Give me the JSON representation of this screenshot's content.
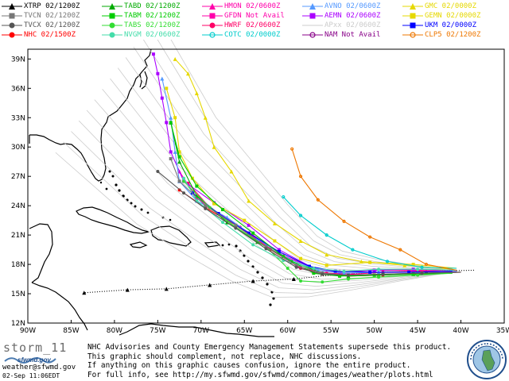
{
  "legend": [
    {
      "label": "XTRP 02/1200Z",
      "color": "#000000",
      "marker": "triangle"
    },
    {
      "label": "TABD 02/1200Z",
      "color": "#00aa00",
      "marker": "triangle"
    },
    {
      "label": "HMON 02/0600Z",
      "color": "#ff00aa",
      "marker": "triangle"
    },
    {
      "label": "AVNO 02/0600Z",
      "color": "#5599ff",
      "marker": "triangle"
    },
    {
      "label": "GMC 02/0000Z",
      "color": "#e6d800",
      "marker": "triangle"
    },
    {
      "label": "TVCN 02/1200Z",
      "color": "#777777",
      "marker": "square"
    },
    {
      "label": "TABM 02/1200Z",
      "color": "#00cc00",
      "marker": "square"
    },
    {
      "label": "GFDN Not Avail",
      "color": "#ff00aa",
      "marker": "square"
    },
    {
      "label": "AEMN 02/0600Z",
      "color": "#aa00ff",
      "marker": "square"
    },
    {
      "label": "GEMN 02/0000Z",
      "color": "#e6d800",
      "marker": "square"
    },
    {
      "label": "TVCX 02/1200Z",
      "color": "#555555",
      "marker": "circle"
    },
    {
      "label": "TABS 02/1200Z",
      "color": "#33dd33",
      "marker": "circle"
    },
    {
      "label": "HWRF 02/0600Z",
      "color": "#ff0066",
      "marker": "circle"
    },
    {
      "label": "APxx 02/0600Z",
      "color": "#cccccc",
      "marker": "none"
    },
    {
      "label": "UKM 02/0000Z",
      "color": "#0000ff",
      "marker": "square"
    },
    {
      "label": "NHC 02/1500Z",
      "color": "#ff0000",
      "marker": "circle"
    },
    {
      "label": "NVGM 02/0600Z",
      "color": "#44ddaa",
      "marker": "circle"
    },
    {
      "label": "COTC 02/0000Z",
      "color": "#00cccc",
      "marker": "ring"
    },
    {
      "label": "NAM Not Avail",
      "color": "#880088",
      "marker": "ring"
    },
    {
      "label": "CLP5 02/1200Z",
      "color": "#ee7700",
      "marker": "ring"
    }
  ],
  "map": {
    "lon_range": [
      -90,
      -35
    ],
    "lat_range": [
      12,
      40
    ],
    "x_ticks": [
      "90W",
      "85W",
      "80W",
      "75W",
      "70W",
      "65W",
      "60W",
      "55W",
      "50W",
      "45W",
      "40W",
      "35W"
    ],
    "y_ticks": [
      "39N",
      "36N",
      "33N",
      "30N",
      "27N",
      "24N",
      "21N",
      "18N",
      "15N",
      "12N"
    ],
    "background": "#ffffff",
    "land_outline": "#000000",
    "grid": false
  },
  "tracks": [
    {
      "model": "XTRP",
      "color": "#000000",
      "dotted": true,
      "points": [
        [
          -38.5,
          17.4
        ],
        [
          -44,
          17.3
        ],
        [
          -49,
          17.2
        ],
        [
          -54,
          17
        ],
        [
          -59.3,
          16.5
        ],
        [
          -64,
          16.3
        ],
        [
          -69,
          15.9
        ],
        [
          -74,
          15.5
        ],
        [
          -78.5,
          15.4
        ],
        [
          -83.5,
          15.1
        ]
      ]
    },
    {
      "model": "NHC",
      "color": "#ff0000",
      "points": [
        [
          -40,
          17.2
        ],
        [
          -44.5,
          17.1
        ],
        [
          -49,
          16.9
        ],
        [
          -53,
          16.8
        ],
        [
          -56,
          17
        ],
        [
          -58.5,
          17.6
        ],
        [
          -62,
          19.5
        ],
        [
          -66,
          22
        ],
        [
          -69.5,
          23.8
        ],
        [
          -72.5,
          25.6
        ]
      ]
    },
    {
      "model": "HWRF",
      "color": "#ff0066",
      "points": [
        [
          -40.5,
          17.3
        ],
        [
          -45,
          17.3
        ],
        [
          -49,
          17.2
        ],
        [
          -52.5,
          17
        ],
        [
          -55.5,
          17.1
        ],
        [
          -58.5,
          17.6
        ],
        [
          -62,
          19.6
        ],
        [
          -65.5,
          21.8
        ],
        [
          -69,
          23.8
        ],
        [
          -71.5,
          26.3
        ]
      ]
    },
    {
      "model": "HMON",
      "color": "#ff00aa",
      "points": [
        [
          -40.5,
          17.3
        ],
        [
          -45.5,
          17.4
        ],
        [
          -50,
          17.4
        ],
        [
          -54,
          17.3
        ],
        [
          -57,
          17.6
        ],
        [
          -60.5,
          18.9
        ],
        [
          -64,
          21
        ],
        [
          -67.5,
          22.9
        ],
        [
          -70.5,
          24.8
        ],
        [
          -72.5,
          27.5
        ]
      ]
    },
    {
      "model": "AEMN",
      "color": "#aa00ff",
      "points": [
        [
          -40.5,
          17.4
        ],
        [
          -45.5,
          17.5
        ],
        [
          -50,
          17.4
        ],
        [
          -54,
          17.2
        ],
        [
          -57,
          17.6
        ],
        [
          -61,
          19.5
        ],
        [
          -64.5,
          22
        ],
        [
          -68.5,
          24.3
        ],
        [
          -72,
          26.5
        ],
        [
          -73.5,
          29.5
        ],
        [
          -74,
          32.5
        ],
        [
          -74.5,
          35
        ],
        [
          -75,
          37.5
        ],
        [
          -75.5,
          39.5
        ]
      ]
    },
    {
      "model": "AVNO",
      "color": "#5599ff",
      "points": [
        [
          -40.5,
          17.3
        ],
        [
          -45,
          17.2
        ],
        [
          -49.5,
          17.2
        ],
        [
          -53.5,
          17.1
        ],
        [
          -56.5,
          17.4
        ],
        [
          -60,
          18.6
        ],
        [
          -63.5,
          20.6
        ],
        [
          -67,
          22.8
        ],
        [
          -70.5,
          24.5
        ],
        [
          -72.5,
          26.5
        ],
        [
          -73,
          29.5
        ],
        [
          -73.5,
          33
        ],
        [
          -74.5,
          37
        ]
      ]
    },
    {
      "model": "UKM",
      "color": "#0000ff",
      "points": [
        [
          -41,
          17.3
        ],
        [
          -46,
          17.2
        ],
        [
          -50.5,
          17.2
        ],
        [
          -54.5,
          17.3
        ],
        [
          -57.5,
          17.8
        ],
        [
          -61,
          19.3
        ],
        [
          -64.5,
          21.2
        ],
        [
          -68,
          23.2
        ],
        [
          -71,
          25.3
        ]
      ]
    },
    {
      "model": "GEMN",
      "color": "#e6d800",
      "points": [
        [
          -40.5,
          17.6
        ],
        [
          -45.5,
          18
        ],
        [
          -50.5,
          18.2
        ],
        [
          -55.5,
          17.9
        ],
        [
          -58.5,
          18.6
        ],
        [
          -61.5,
          20.4
        ],
        [
          -65,
          22.5
        ],
        [
          -68.5,
          24.2
        ],
        [
          -71,
          26.8
        ],
        [
          -72.5,
          29.5
        ],
        [
          -73,
          33
        ],
        [
          -74,
          36
        ]
      ]
    },
    {
      "model": "GMC",
      "color": "#e6d800",
      "points": [
        [
          -41,
          17.5
        ],
        [
          -46.5,
          17.9
        ],
        [
          -51.5,
          18.3
        ],
        [
          -55.5,
          19
        ],
        [
          -58.5,
          20.4
        ],
        [
          -61.5,
          22.2
        ],
        [
          -64.5,
          24.5
        ],
        [
          -66.5,
          27.5
        ],
        [
          -68.5,
          30
        ],
        [
          -69.5,
          33
        ],
        [
          -70.5,
          35.5
        ],
        [
          -71.5,
          37.5
        ],
        [
          -73,
          39
        ]
      ]
    },
    {
      "model": "TABD",
      "color": "#00aa00",
      "points": [
        [
          -41,
          17.1
        ],
        [
          -45.5,
          17
        ],
        [
          -49.5,
          16.9
        ],
        [
          -53,
          16.8
        ],
        [
          -56,
          17.1
        ],
        [
          -59.5,
          18.3
        ],
        [
          -63.5,
          20.3
        ],
        [
          -67,
          22.3
        ],
        [
          -70.5,
          25
        ],
        [
          -72.5,
          28.5
        ],
        [
          -73.5,
          32.5
        ]
      ]
    },
    {
      "model": "TABM",
      "color": "#00cc00",
      "points": [
        [
          -41,
          17.1
        ],
        [
          -45.5,
          17
        ],
        [
          -50,
          16.9
        ],
        [
          -54,
          16.8
        ],
        [
          -57,
          17.1
        ],
        [
          -60.5,
          18.8
        ],
        [
          -64,
          21.2
        ],
        [
          -67.5,
          23.6
        ],
        [
          -70.5,
          26
        ],
        [
          -72.5,
          29
        ],
        [
          -73.5,
          32.5
        ]
      ]
    },
    {
      "model": "TABS",
      "color": "#33dd33",
      "points": [
        [
          -41,
          17.1
        ],
        [
          -45,
          16.9
        ],
        [
          -49.5,
          16.7
        ],
        [
          -53,
          16.5
        ],
        [
          -56,
          16.2
        ],
        [
          -58.5,
          16.3
        ],
        [
          -60,
          17.6
        ],
        [
          -62.5,
          19.8
        ],
        [
          -66,
          21.8
        ],
        [
          -69,
          23.8
        ],
        [
          -72,
          26.5
        ]
      ]
    },
    {
      "model": "NVGM",
      "color": "#44ddaa",
      "points": [
        [
          -40.5,
          17.4
        ],
        [
          -45,
          17.5
        ],
        [
          -49.5,
          17.5
        ],
        [
          -53.5,
          17.3
        ],
        [
          -57,
          17.6
        ],
        [
          -60.5,
          18.4
        ],
        [
          -64,
          20
        ],
        [
          -67.5,
          22.3
        ],
        [
          -70.5,
          24.5
        ],
        [
          -72,
          26.8
        ]
      ]
    },
    {
      "model": "TVCN",
      "color": "#777777",
      "points": [
        [
          -40,
          17.2
        ],
        [
          -44.5,
          17.1
        ],
        [
          -49,
          17
        ],
        [
          -53,
          16.9
        ],
        [
          -56,
          17.1
        ],
        [
          -59,
          17.9
        ],
        [
          -62.5,
          19.8
        ],
        [
          -66,
          22
        ],
        [
          -69.5,
          24
        ],
        [
          -72.5,
          26.5
        ],
        [
          -73.5,
          28.8
        ]
      ]
    },
    {
      "model": "TVCX",
      "color": "#555555",
      "points": [
        [
          -40,
          17.2
        ],
        [
          -44.5,
          17.1
        ],
        [
          -49,
          17
        ],
        [
          -53,
          16.9
        ],
        [
          -56,
          17
        ],
        [
          -59,
          17.7
        ],
        [
          -62.5,
          19.6
        ],
        [
          -66,
          21.7
        ],
        [
          -69.5,
          23.7
        ],
        [
          -72,
          25.3
        ],
        [
          -75,
          27.5
        ]
      ]
    },
    {
      "model": "COTC",
      "color": "#00cccc",
      "points": [
        [
          -40.5,
          17.6
        ],
        [
          -44.5,
          17.7
        ],
        [
          -48.5,
          18.3
        ],
        [
          -52.5,
          19.5
        ],
        [
          -55.5,
          21
        ],
        [
          -58.5,
          23
        ],
        [
          -60.5,
          24.9
        ]
      ]
    },
    {
      "model": "CLP5",
      "color": "#ee7700",
      "points": [
        [
          -40.5,
          17.4
        ],
        [
          -44,
          18
        ],
        [
          -47,
          19.5
        ],
        [
          -50.5,
          20.8
        ],
        [
          -53.5,
          22.4
        ],
        [
          -56.5,
          24.6
        ],
        [
          -58.5,
          27
        ],
        [
          -59.5,
          29.8
        ]
      ]
    },
    {
      "model": "APxx",
      "color": "#cccccc",
      "ensemble": true,
      "points": [
        [
          -40.5,
          17.3
        ],
        [
          -46,
          17.2
        ],
        [
          -51,
          17.1
        ],
        [
          -55.5,
          17.2
        ],
        [
          -59,
          18
        ],
        [
          -63,
          20.5
        ],
        [
          -67.5,
          24
        ],
        [
          -72.5,
          28
        ],
        [
          -76.5,
          32.5
        ],
        [
          -80.5,
          37
        ]
      ]
    }
  ],
  "footer": {
    "storm_name": "storm_11",
    "logo_text": "sfwmd.gov",
    "contact": "weather@sfwmd.gov",
    "timestamp": "02-Sep 11:06EDT",
    "disclaimer_lines": [
      "NHC Advisories and County Emergency Management Statements supersede this product.",
      "This graphic should complement, not replace, NHC discussions.",
      "If anything on this graphic causes confusion, ignore the entire product.",
      "For full info, see  http://my.sfwmd.gov/sfwmd/common/images/weather/plots.html"
    ]
  }
}
